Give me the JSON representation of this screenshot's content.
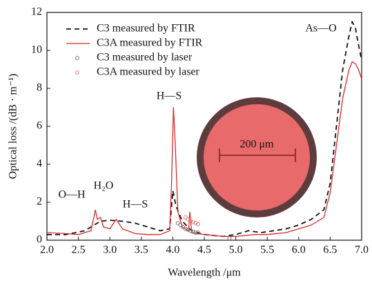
{
  "chart_data": {
    "type": "line",
    "x_label": "Wavelength /μm",
    "y_label": "Optical loss /(dB · m⁻¹)",
    "xlim": [
      2.0,
      7.0
    ],
    "ylim": [
      0,
      12
    ],
    "xticks": [
      {
        "value": 2,
        "label": "2.0"
      },
      2.5,
      {
        "value": 3,
        "label": "3.0"
      },
      3.5,
      {
        "value": 4,
        "label": "4.0"
      },
      4.5,
      {
        "value": 5,
        "label": "5.0"
      },
      5.5,
      {
        "value": 6,
        "label": "6.0"
      },
      6.5,
      {
        "value": 7,
        "label": "7.0"
      }
    ],
    "yticks": [
      0,
      2,
      4,
      6,
      8,
      10,
      12
    ],
    "legend": "upper left",
    "series": [
      {
        "name": "C3 measured by FTIR",
        "color": "#111111",
        "style": "dashed",
        "x": [
          2.0,
          2.3,
          2.6,
          2.75,
          2.85,
          3.0,
          3.2,
          3.4,
          3.6,
          3.8,
          3.95,
          4.0,
          4.05,
          4.15,
          4.3,
          4.5,
          4.8,
          5.0,
          5.2,
          5.4,
          5.6,
          5.8,
          6.0,
          6.2,
          6.4,
          6.5,
          6.6,
          6.7,
          6.8,
          6.85,
          6.9,
          6.95,
          7.0
        ],
        "values": [
          0.3,
          0.3,
          0.5,
          0.8,
          1.0,
          1.05,
          1.0,
          0.9,
          0.7,
          0.5,
          0.6,
          2.6,
          1.8,
          1.0,
          0.5,
          0.3,
          0.2,
          0.3,
          0.5,
          0.4,
          0.5,
          0.6,
          0.8,
          1.1,
          1.6,
          3.0,
          6.0,
          9.0,
          10.8,
          11.5,
          11.2,
          10.3,
          9.5
        ]
      },
      {
        "name": "C3A measured by FTIR",
        "color": "#d62828",
        "style": "solid",
        "x": [
          2.0,
          2.3,
          2.5,
          2.7,
          2.77,
          2.8,
          2.85,
          2.9,
          3.0,
          3.1,
          3.2,
          3.4,
          3.6,
          3.8,
          3.95,
          3.98,
          4.01,
          4.04,
          4.08,
          4.15,
          4.25,
          4.27,
          4.3,
          4.5,
          4.8,
          5.0,
          5.3,
          5.5,
          5.8,
          6.0,
          6.2,
          6.4,
          6.5,
          6.6,
          6.7,
          6.8,
          6.85,
          6.9,
          6.95,
          7.0
        ],
        "values": [
          0.4,
          0.35,
          0.3,
          0.5,
          1.6,
          1.1,
          1.2,
          0.7,
          0.6,
          1.1,
          0.6,
          0.35,
          0.3,
          0.3,
          0.5,
          3.0,
          7.0,
          5.0,
          1.5,
          0.7,
          0.5,
          1.5,
          0.4,
          0.3,
          0.2,
          0.2,
          0.3,
          0.3,
          0.4,
          0.6,
          0.8,
          1.2,
          2.5,
          5.0,
          7.5,
          9.0,
          9.4,
          9.3,
          9.0,
          8.5
        ]
      },
      {
        "name": "C3 measured by laser",
        "color": "#777777",
        "style": "markers",
        "x": [
          4.08,
          4.12,
          4.16,
          4.2,
          4.24,
          4.28,
          4.32,
          4.36,
          4.4,
          4.9
        ],
        "values": [
          0.9,
          0.8,
          0.7,
          0.6,
          0.55,
          0.5,
          0.45,
          0.4,
          0.4,
          0.1
        ]
      },
      {
        "name": "C3A measured by laser",
        "color": "#e87878",
        "style": "markers",
        "x": [
          4.2,
          4.24,
          4.28,
          4.32,
          4.36,
          4.4
        ],
        "values": [
          1.2,
          1.1,
          1.0,
          0.95,
          0.9,
          0.85
        ]
      }
    ],
    "annotations": [
      "As—O",
      "H—S",
      "O—H",
      "H₂O",
      "H—S"
    ],
    "inset_label": "200 μm"
  }
}
